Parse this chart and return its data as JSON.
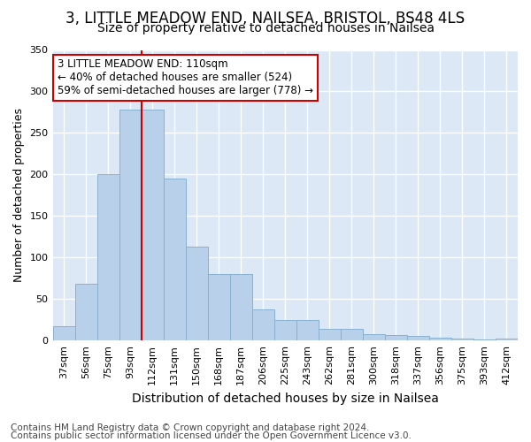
{
  "title1": "3, LITTLE MEADOW END, NAILSEA, BRISTOL, BS48 4LS",
  "title2": "Size of property relative to detached houses in Nailsea",
  "xlabel": "Distribution of detached houses by size in Nailsea",
  "ylabel": "Number of detached properties",
  "categories": [
    "37sqm",
    "56sqm",
    "75sqm",
    "93sqm",
    "112sqm",
    "131sqm",
    "150sqm",
    "168sqm",
    "187sqm",
    "206sqm",
    "225sqm",
    "243sqm",
    "262sqm",
    "281sqm",
    "300sqm",
    "318sqm",
    "337sqm",
    "356sqm",
    "375sqm",
    "393sqm",
    "412sqm"
  ],
  "values": [
    17,
    68,
    200,
    278,
    278,
    195,
    113,
    80,
    80,
    38,
    25,
    25,
    14,
    14,
    8,
    7,
    6,
    3,
    2,
    1,
    2
  ],
  "bar_color": "#b8d0ea",
  "bar_edge_color": "#8ab0d0",
  "bar_linewidth": 0.7,
  "red_line_x": 3.5,
  "red_line_color": "#cc0000",
  "annotation_text": "3 LITTLE MEADOW END: 110sqm\n← 40% of detached houses are smaller (524)\n59% of semi-detached houses are larger (778) →",
  "annotation_box_color": "#ffffff",
  "annotation_box_edge_color": "#cc0000",
  "ylim": [
    0,
    350
  ],
  "yticks": [
    0,
    50,
    100,
    150,
    200,
    250,
    300,
    350
  ],
  "background_color": "#dce8f5",
  "grid_color": "#ffffff",
  "footer1": "Contains HM Land Registry data © Crown copyright and database right 2024.",
  "footer2": "Contains public sector information licensed under the Open Government Licence v3.0.",
  "title1_fontsize": 12,
  "title2_fontsize": 10,
  "xlabel_fontsize": 10,
  "ylabel_fontsize": 9,
  "tick_fontsize": 8,
  "footer_fontsize": 7.5,
  "annotation_fontsize": 8.5
}
